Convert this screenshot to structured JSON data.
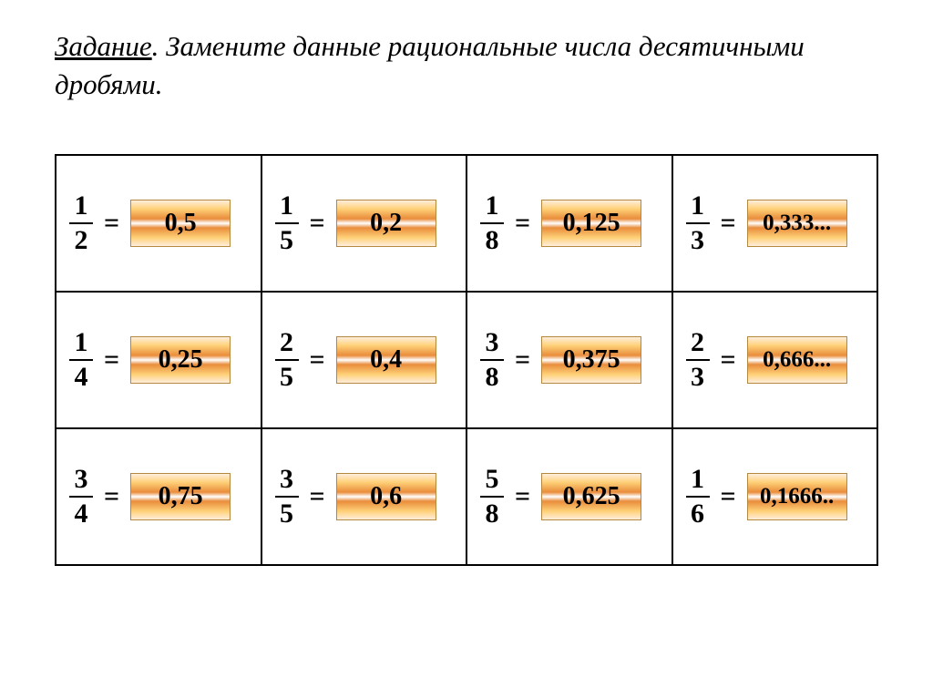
{
  "heading": {
    "label": "Задание",
    "text": ". Замените данные рациональные числа десятичными дробями."
  },
  "table": {
    "border_color": "#000000",
    "rows": 3,
    "cols": 4,
    "answer_style": {
      "border_color": "#b4893f",
      "gradient_colors": [
        "#ffeedd",
        "#ffd179",
        "#e98d3b",
        "#ffffff",
        "#e98d3b",
        "#ffd179",
        "#ffeedd"
      ],
      "text_color": "#000000",
      "font_weight": "bold"
    },
    "cells": [
      [
        {
          "numerator": "1",
          "denominator": "2",
          "answer": "0,5"
        },
        {
          "numerator": "1",
          "denominator": "5",
          "answer": "0,2"
        },
        {
          "numerator": "1",
          "denominator": "8",
          "answer": "0,125"
        },
        {
          "numerator": "1",
          "denominator": "3",
          "answer": "0,333..."
        }
      ],
      [
        {
          "numerator": "1",
          "denominator": "4",
          "answer": "0,25"
        },
        {
          "numerator": "2",
          "denominator": "5",
          "answer": "0,4"
        },
        {
          "numerator": "3",
          "denominator": "8",
          "answer": "0,375"
        },
        {
          "numerator": "2",
          "denominator": "3",
          "answer": "0,666..."
        }
      ],
      [
        {
          "numerator": "3",
          "denominator": "4",
          "answer": "0,75"
        },
        {
          "numerator": "3",
          "denominator": "5",
          "answer": "0,6"
        },
        {
          "numerator": "5",
          "denominator": "8",
          "answer": "0,625"
        },
        {
          "numerator": "1",
          "denominator": "6",
          "answer": "0,1666.."
        }
      ]
    ]
  }
}
